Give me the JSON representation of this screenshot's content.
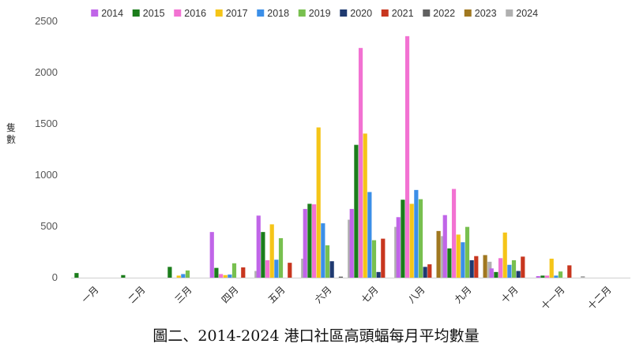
{
  "chart_data": {
    "type": "bar",
    "title": "",
    "caption": "圖二、2014-2024 港口社區高頭蝠每月平均數量",
    "xlabel": "",
    "ylabel": "隻數",
    "ylim": [
      0,
      2500
    ],
    "yticks": [
      0,
      500,
      1000,
      1500,
      2000,
      2500
    ],
    "grid": false,
    "legend_position": "top",
    "categories": [
      "一月",
      "二月",
      "三月",
      "四月",
      "五月",
      "六月",
      "七月",
      "八月",
      "九月",
      "十月",
      "十一月",
      "十二月"
    ],
    "series": [
      {
        "name": "2014",
        "color": "#c065e8",
        "values": [
          0,
          0,
          0,
          445,
          605,
          670,
          670,
          590,
          610,
          90,
          15,
          0
        ]
      },
      {
        "name": "2015",
        "color": "#1b7d1b",
        "values": [
          45,
          25,
          105,
          95,
          445,
          720,
          1295,
          760,
          285,
          55,
          20,
          0
        ]
      },
      {
        "name": "2016",
        "color": "#f272d2",
        "values": [
          0,
          0,
          0,
          35,
          170,
          715,
          2240,
          2355,
          865,
          190,
          20,
          0
        ]
      },
      {
        "name": "2017",
        "color": "#f5c518",
        "values": [
          0,
          0,
          20,
          25,
          520,
          1465,
          1405,
          720,
          420,
          440,
          185,
          0
        ]
      },
      {
        "name": "2018",
        "color": "#3b8fe8",
        "values": [
          0,
          0,
          35,
          30,
          175,
          530,
          835,
          855,
          345,
          125,
          20,
          0
        ]
      },
      {
        "name": "2019",
        "color": "#78c04f",
        "values": [
          0,
          0,
          70,
          140,
          385,
          315,
          365,
          765,
          495,
          170,
          60,
          0
        ]
      },
      {
        "name": "2020",
        "color": "#1f3a70",
        "values": [
          0,
          0,
          0,
          0,
          0,
          160,
          55,
          105,
          170,
          65,
          0,
          0
        ]
      },
      {
        "name": "2021",
        "color": "#c8361f",
        "values": [
          0,
          0,
          0,
          100,
          145,
          0,
          380,
          130,
          210,
          205,
          120,
          0
        ]
      },
      {
        "name": "2022",
        "color": "#606060",
        "values": [
          0,
          0,
          0,
          0,
          0,
          10,
          0,
          0,
          0,
          0,
          0,
          0
        ]
      },
      {
        "name": "2023",
        "color": "#a07820",
        "values": [
          0,
          0,
          0,
          0,
          0,
          0,
          0,
          455,
          220,
          0,
          0,
          0
        ]
      },
      {
        "name": "2024",
        "color": "#b0b0b0",
        "values": [
          0,
          0,
          0,
          65,
          185,
          565,
          495,
          405,
          155,
          0,
          15,
          0
        ]
      }
    ]
  }
}
